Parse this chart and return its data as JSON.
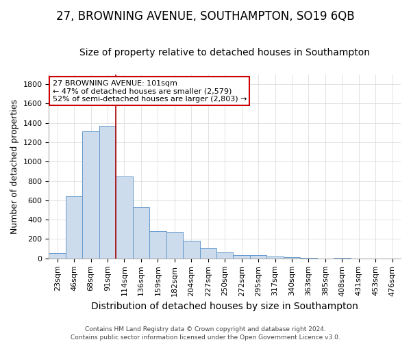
{
  "title": "27, BROWNING AVENUE, SOUTHAMPTON, SO19 6QB",
  "subtitle": "Size of property relative to detached houses in Southampton",
  "xlabel": "Distribution of detached houses by size in Southampton",
  "ylabel": "Number of detached properties",
  "bar_labels": [
    "23sqm",
    "46sqm",
    "68sqm",
    "91sqm",
    "114sqm",
    "136sqm",
    "159sqm",
    "182sqm",
    "204sqm",
    "227sqm",
    "250sqm",
    "272sqm",
    "295sqm",
    "317sqm",
    "340sqm",
    "363sqm",
    "385sqm",
    "408sqm",
    "431sqm",
    "453sqm",
    "476sqm"
  ],
  "bar_values": [
    55,
    640,
    1310,
    1370,
    845,
    530,
    278,
    275,
    185,
    105,
    65,
    35,
    35,
    20,
    12,
    8,
    0,
    8,
    0,
    0,
    0
  ],
  "bar_color": "#ccdcec",
  "bar_edge_color": "#6699cc",
  "vline_color": "#aa0000",
  "vline_x": 3.5,
  "annotation_text": "27 BROWNING AVENUE: 101sqm\n← 47% of detached houses are smaller (2,579)\n52% of semi-detached houses are larger (2,803) →",
  "annotation_box_color": "white",
  "annotation_box_edge_color": "#cc0000",
  "footer_line1": "Contains HM Land Registry data © Crown copyright and database right 2024.",
  "footer_line2": "Contains public sector information licensed under the Open Government Licence v3.0.",
  "background_color": "#ffffff",
  "plot_background_color": "#ffffff",
  "ylim": [
    0,
    1900
  ],
  "yticks": [
    0,
    200,
    400,
    600,
    800,
    1000,
    1200,
    1400,
    1600,
    1800
  ],
  "title_fontsize": 12,
  "subtitle_fontsize": 10,
  "xlabel_fontsize": 10,
  "ylabel_fontsize": 9,
  "tick_fontsize": 8,
  "annotation_fontsize": 8,
  "footer_fontsize": 6.5
}
